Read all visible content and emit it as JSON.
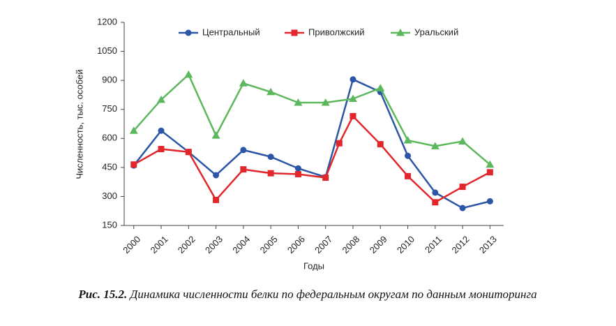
{
  "chart_data": {
    "type": "line",
    "y_label": "Численность, тыс. особей",
    "x_label": "Годы",
    "caption_label": "Рис. 15.2.",
    "caption_text": "Динамика численности белки по федеральным округам по данным мониторинга",
    "x": [
      2000,
      2001,
      2002,
      2003,
      2004,
      2005,
      2006,
      2007,
      2008,
      2009,
      2010,
      2011,
      2012,
      2013
    ],
    "xlim": [
      1999.65,
      2013.5
    ],
    "xticks": [
      2000,
      2001,
      2002,
      2003,
      2004,
      2005,
      2006,
      2007,
      2008,
      2009,
      2010,
      2011,
      2012,
      2013
    ],
    "ylim": [
      150,
      1200
    ],
    "yticks": [
      150,
      300,
      450,
      600,
      750,
      900,
      1050,
      1200
    ],
    "legend": "top",
    "series": [
      {
        "name": "Центральный",
        "color": "#2b55a5",
        "marker": "circle",
        "values": [
          460,
          640,
          530,
          410,
          540,
          505,
          445,
          400,
          905,
          840,
          510,
          320,
          240,
          275
        ]
      },
      {
        "name": "Приволжский",
        "color": "#e1272c",
        "marker": "square",
        "x": [
          2000,
          2001,
          2002,
          2003,
          2004,
          2005,
          2006,
          2007,
          2007.5,
          2008,
          2009,
          2010,
          2011,
          2012,
          2013
        ],
        "values": [
          465,
          545,
          530,
          282,
          440,
          420,
          415,
          397,
          575,
          715,
          570,
          405,
          270,
          350,
          425
        ]
      },
      {
        "name": "Уральский",
        "color": "#5cb85c",
        "marker": "triangle",
        "values": [
          640,
          800,
          930,
          615,
          885,
          840,
          785,
          785,
          805,
          860,
          590,
          560,
          585,
          465
        ]
      }
    ]
  }
}
